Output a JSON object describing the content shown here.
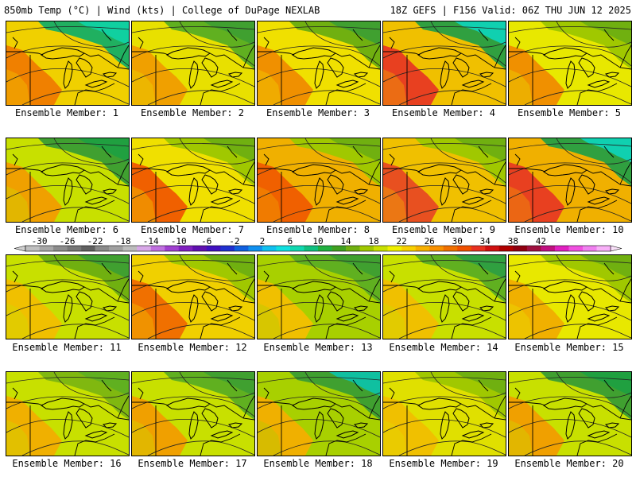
{
  "header": {
    "left": "850mb Temp (°C) | Wind (kts) | College of DuPage NEXLAB",
    "right": "18Z GEFS | F156 Valid: 06Z THU JUN 12 2025"
  },
  "colorbar": {
    "tick_labels": [
      "-30",
      "-26",
      "-22",
      "-18",
      "-14",
      "-10",
      "-6",
      "-2",
      "2",
      "6",
      "10",
      "14",
      "18",
      "22",
      "26",
      "30",
      "34",
      "38",
      "42"
    ],
    "colors": [
      "#c0c0c0",
      "#a8a8a8",
      "#8c8c8c",
      "#767676",
      "#606060",
      "#8a8a8a",
      "#a0a0a0",
      "#bcbcbc",
      "#d8a8e8",
      "#c070e0",
      "#a040d0",
      "#8020c0",
      "#6010b0",
      "#4010c0",
      "#2030d0",
      "#1060e0",
      "#1090f0",
      "#10c0f0",
      "#10e0e0",
      "#10d8b0",
      "#10c080",
      "#20b040",
      "#40a020",
      "#70b010",
      "#a0c800",
      "#c8e000",
      "#f0f000",
      "#f8d000",
      "#f8b000",
      "#f89000",
      "#f07000",
      "#f05000",
      "#e83020",
      "#d01010",
      "#b00000",
      "#900010",
      "#a01040",
      "#c01080",
      "#e020c0",
      "#f050e0",
      "#f080f0",
      "#f8b0f8"
    ],
    "min": -30,
    "max": 42,
    "step": 2,
    "colors_note_unit": "°C"
  },
  "members": [
    {
      "label": "Ensemble Member:  1",
      "id": 1,
      "dominant": "#f0d000",
      "warm": "#f08000",
      "cool": "#20b060",
      "cold": "#10d0a0"
    },
    {
      "label": "Ensemble Member:  2",
      "id": 2,
      "dominant": "#e8e000",
      "warm": "#f0a000",
      "cool": "#60b020",
      "cold": "#40a030"
    },
    {
      "label": "Ensemble Member:  3",
      "id": 3,
      "dominant": "#f0e000",
      "warm": "#f09000",
      "cool": "#70b010",
      "cold": "#40a030"
    },
    {
      "label": "Ensemble Member:  4",
      "id": 4,
      "dominant": "#f0c000",
      "warm": "#e84020",
      "cool": "#30a040",
      "cold": "#10d0b0"
    },
    {
      "label": "Ensemble Member:  5",
      "id": 5,
      "dominant": "#e8e800",
      "warm": "#f09000",
      "cool": "#a0c800",
      "cold": "#70b010"
    },
    {
      "label": "Ensemble Member:  6",
      "id": 6,
      "dominant": "#c8e000",
      "warm": "#f0a000",
      "cool": "#40a030",
      "cold": "#20a040"
    },
    {
      "label": "Ensemble Member:  7",
      "id": 7,
      "dominant": "#f0e000",
      "warm": "#f06000",
      "cool": "#a0c800",
      "cold": "#70b010"
    },
    {
      "label": "Ensemble Member:  8",
      "id": 8,
      "dominant": "#f0b000",
      "warm": "#f06000",
      "cool": "#a0c800",
      "cold": "#70b010"
    },
    {
      "label": "Ensemble Member:  9",
      "id": 9,
      "dominant": "#f0c000",
      "warm": "#e85020",
      "cool": "#a0c800",
      "cold": "#70b010"
    },
    {
      "label": "Ensemble Member: 10",
      "id": 10,
      "dominant": "#f0b000",
      "warm": "#e84020",
      "cool": "#30a040",
      "cold": "#10d0b0"
    },
    {
      "label": "Ensemble Member: 11",
      "id": 11,
      "dominant": "#c8e000",
      "warm": "#f0c000",
      "cool": "#70b010",
      "cold": "#40a030"
    },
    {
      "label": "Ensemble Member: 12",
      "id": 12,
      "dominant": "#f0d000",
      "warm": "#f07000",
      "cool": "#a0c800",
      "cold": "#70b010"
    },
    {
      "label": "Ensemble Member: 13",
      "id": 13,
      "dominant": "#a8d000",
      "warm": "#f0c000",
      "cool": "#60b020",
      "cold": "#40a030"
    },
    {
      "label": "Ensemble Member: 14",
      "id": 14,
      "dominant": "#c8e000",
      "warm": "#f0c000",
      "cool": "#60b020",
      "cold": "#30a040"
    },
    {
      "label": "Ensemble Member: 15",
      "id": 15,
      "dominant": "#e8e800",
      "warm": "#f0b000",
      "cool": "#a0c800",
      "cold": "#70b010"
    },
    {
      "label": "Ensemble Member: 16",
      "id": 16,
      "dominant": "#c8e000",
      "warm": "#f0b000",
      "cool": "#80b810",
      "cold": "#60b020"
    },
    {
      "label": "Ensemble Member: 17",
      "id": 17,
      "dominant": "#c8e000",
      "warm": "#f0a000",
      "cool": "#60b020",
      "cold": "#40a030"
    },
    {
      "label": "Ensemble Member: 18",
      "id": 18,
      "dominant": "#a8d000",
      "warm": "#f0b000",
      "cool": "#40a030",
      "cold": "#10c0a0"
    },
    {
      "label": "Ensemble Member: 19",
      "id": 19,
      "dominant": "#e0e000",
      "warm": "#f0c000",
      "cool": "#a0c800",
      "cold": "#70b010"
    },
    {
      "label": "Ensemble Member: 20",
      "id": 20,
      "dominant": "#c8e000",
      "warm": "#f0a000",
      "cool": "#40a030",
      "cold": "#20a040"
    }
  ]
}
